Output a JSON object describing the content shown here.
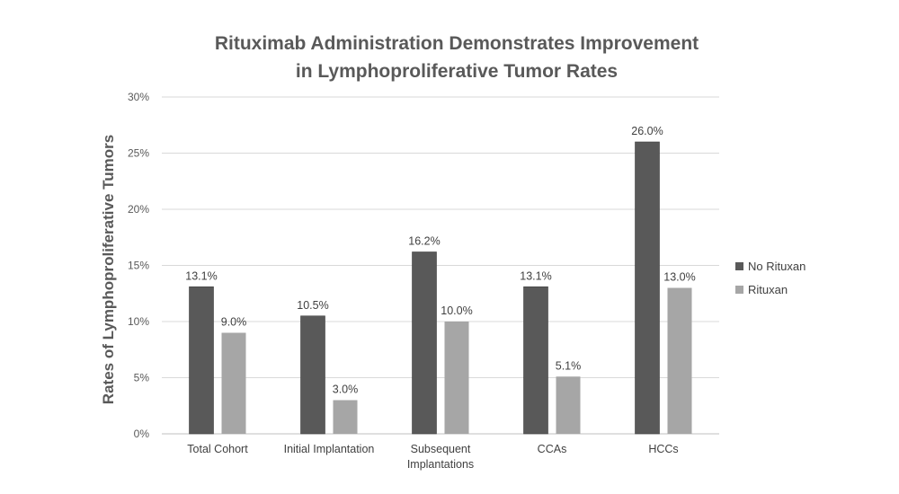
{
  "chart_data": {
    "type": "bar",
    "title_lines": [
      "Rituximab Administration Demonstrates Improvement",
      "in Lymphoproliferative Tumor Rates"
    ],
    "xlabel": "",
    "ylabel": "Rates of Lymphoproliferative Tumors",
    "ylim": [
      0,
      30
    ],
    "yticks": [
      0,
      5,
      10,
      15,
      20,
      25,
      30
    ],
    "ytick_labels": [
      "0%",
      "5%",
      "10%",
      "15%",
      "20%",
      "25%",
      "30%"
    ],
    "grid": true,
    "legend_position": "right",
    "categories": [
      [
        "Total Cohort"
      ],
      [
        "Initial Implantation"
      ],
      [
        "Subsequent",
        "Implantations"
      ],
      [
        "CCAs"
      ],
      [
        "HCCs"
      ]
    ],
    "series": [
      {
        "name": "No Rituxan",
        "color": "#595959",
        "values": [
          13.1,
          10.5,
          16.2,
          13.1,
          26.0
        ],
        "labels": [
          "13.1%",
          "10.5%",
          "16.2%",
          "13.1%",
          "26.0%"
        ]
      },
      {
        "name": "Rituxan",
        "color": "#a6a6a6",
        "values": [
          9.0,
          3.0,
          10.0,
          5.1,
          13.0
        ],
        "labels": [
          "9.0%",
          "3.0%",
          "10.0%",
          "5.1%",
          "13.0%"
        ]
      }
    ]
  }
}
